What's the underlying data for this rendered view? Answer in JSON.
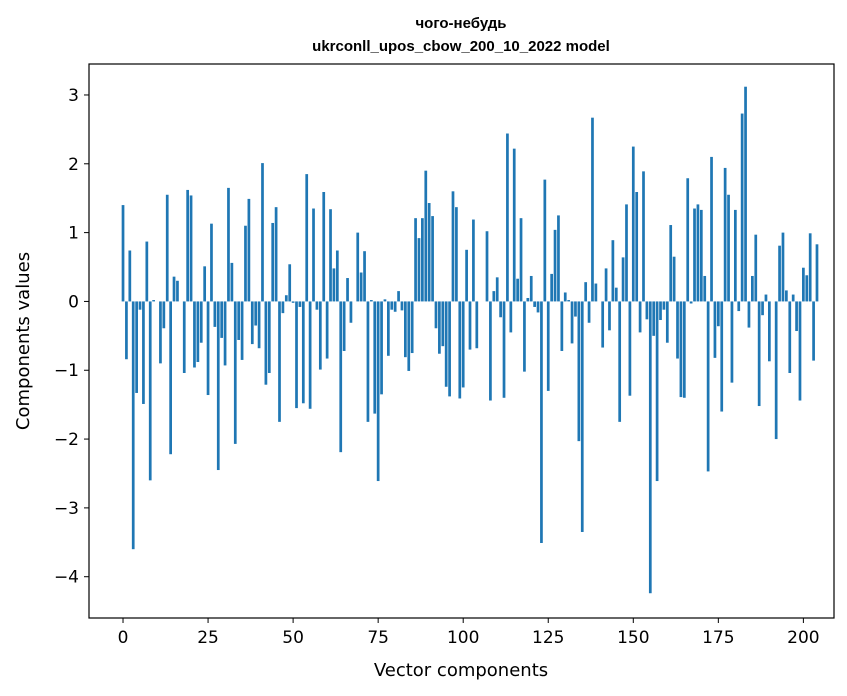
{
  "chart_data": {
    "type": "bar",
    "title": "чого-небудь",
    "subtitle": "ukrconll_upos_cbow_200_10_2022 model",
    "xlabel": "Vector components",
    "ylabel": "Components values",
    "xlim": [
      -10,
      209
    ],
    "ylim": [
      -4.6,
      3.45
    ],
    "xticks": [
      0,
      25,
      50,
      75,
      100,
      125,
      150,
      175,
      200
    ],
    "yticks": [
      -4,
      -3,
      -2,
      -1,
      0,
      1,
      2,
      3
    ],
    "xtick_labels": [
      "0",
      "25",
      "50",
      "75",
      "100",
      "125",
      "150",
      "175",
      "200"
    ],
    "ytick_labels": [
      "−4",
      "−3",
      "−2",
      "−1",
      "0",
      "1",
      "2",
      "3"
    ],
    "bar_color": "#1f77b4",
    "values": [
      1.4,
      -0.84,
      0.74,
      -3.6,
      -1.33,
      -0.12,
      -1.49,
      0.87,
      -2.6,
      0.02,
      0.0,
      -0.9,
      -0.39,
      1.55,
      -2.22,
      0.36,
      0.3,
      0.0,
      -1.04,
      1.62,
      1.54,
      -0.96,
      -0.88,
      -0.6,
      0.51,
      -1.36,
      1.13,
      -0.37,
      -2.45,
      -0.53,
      -0.93,
      1.65,
      0.56,
      -2.07,
      -0.56,
      -0.85,
      1.1,
      1.49,
      -0.62,
      -0.35,
      -0.68,
      2.01,
      -1.21,
      -1.04,
      1.14,
      1.37,
      -1.75,
      -0.17,
      0.09,
      0.54,
      -0.02,
      -1.55,
      -0.08,
      -1.48,
      1.85,
      -1.56,
      1.35,
      -0.12,
      -0.99,
      1.59,
      -0.83,
      1.34,
      0.48,
      0.74,
      -2.19,
      -0.72,
      0.34,
      -0.31,
      0.0,
      1.0,
      0.42,
      0.73,
      -1.75,
      0.02,
      -1.63,
      -2.61,
      -1.35,
      0.03,
      -0.79,
      -0.12,
      -0.15,
      0.15,
      -0.13,
      -0.81,
      -1.01,
      -0.75,
      1.21,
      0.92,
      1.21,
      1.9,
      1.43,
      1.24,
      -0.39,
      -0.76,
      -0.65,
      -1.24,
      -1.38,
      1.6,
      1.37,
      -1.41,
      -1.25,
      0.75,
      -0.7,
      1.19,
      -0.68,
      0.0,
      0.0,
      1.02,
      -1.44,
      0.15,
      0.35,
      -0.23,
      -1.4,
      2.44,
      -0.45,
      2.22,
      0.33,
      1.21,
      -1.02,
      0.05,
      0.37,
      -0.08,
      -0.16,
      -3.51,
      1.77,
      -1.3,
      0.4,
      1.04,
      1.25,
      -0.72,
      0.13,
      0.02,
      -0.61,
      -0.22,
      -2.03,
      -3.35,
      0.28,
      -0.31,
      2.67,
      0.26,
      0.0,
      -0.67,
      0.48,
      -0.42,
      0.89,
      0.2,
      -1.75,
      0.64,
      1.41,
      -1.37,
      2.25,
      1.59,
      -0.45,
      1.89,
      -0.26,
      -4.24,
      -0.5,
      -2.61,
      -0.27,
      -0.12,
      -0.6,
      1.11,
      0.65,
      -0.83,
      -1.39,
      -1.4,
      1.79,
      -0.03,
      1.35,
      1.41,
      1.33,
      0.37,
      -2.47,
      2.1,
      -0.82,
      -0.36,
      -1.6,
      1.94,
      1.55,
      -1.18,
      1.33,
      -0.14,
      2.73,
      3.12,
      -0.38,
      0.37,
      0.97,
      -1.52,
      -0.2,
      0.1,
      -0.87,
      0.0,
      -2.0,
      0.81,
      1.0,
      0.16,
      -1.04,
      0.1,
      -0.43,
      -1.44,
      0.49,
      0.38,
      0.99,
      -0.86,
      0.83
    ]
  }
}
